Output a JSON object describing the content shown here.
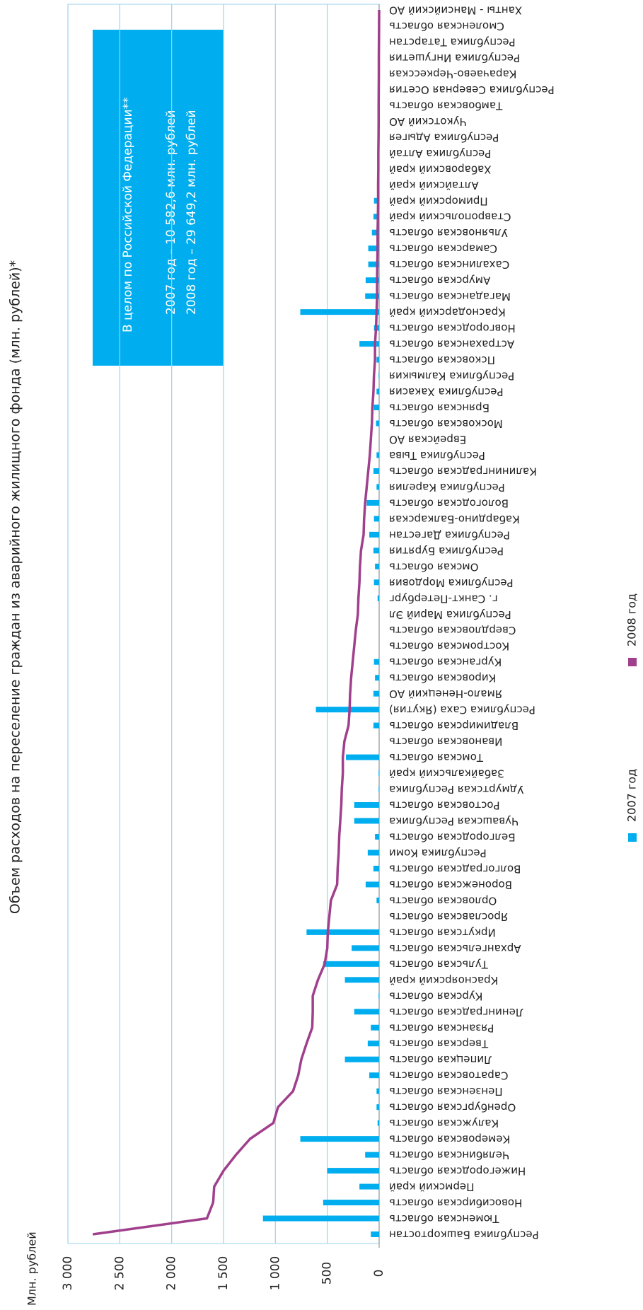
{
  "chart_data": {
    "type": "bar_line",
    "title": "Объем расходов на переселение граждан из аварийного жилищного фонда (млн. рублей)*",
    "ylabel": "Млн. рублей",
    "annotation": [
      "В  целом по Российской Федерации**",
      "2007 год – 10 582,6 млн. рублей",
      "2008 год – 29 649,2 млн. рублей"
    ],
    "categories": [
      "Республика Башкортостан",
      "Тюменская область",
      "Новосибирская область",
      "Пермский край",
      "Нижегородская область",
      "Челябинская область",
      "Кемеровская область",
      "Калужская область",
      "Оренбургская область",
      "Пензенская область",
      "Саратовская область",
      "Липецкая область",
      "Тверская область",
      "Рязанская  область",
      "Ленинградская область",
      "Курская область",
      "Красноярский край",
      "Тульская область",
      "Архангельская область",
      "Иркутская область",
      "Ярославская область",
      "Орловская область",
      "Воронежская область",
      "Волгоградская область",
      "Республика Коми",
      "Белгородская область",
      "Чувашская Республика",
      "Ростовская область",
      "Удмуртская Республика",
      "Забайкальский край",
      "Томская область",
      "Ивановская область",
      "Владимирская область",
      "Республика Саха (Якутия)",
      "Ямало-Ненецкий АО",
      "Кировская область",
      "Курганская область",
      "Костромская область",
      "Свердловская область",
      "Республика Марий Эл",
      "г. Санкт-Петербург",
      "Республика Мордовия",
      "Омская область",
      "Республика Бурятия",
      "Республика Дагестан",
      "Кабардино-Балкарская",
      "Вологодская область",
      "Республика Карелия",
      "Калининградская область",
      "Республика Тыва",
      "Еврейская АО",
      "Московская область",
      "Брянская область",
      "Республика Хакасия",
      "Республика Калмыкия",
      "Псковская область",
      "Астраханская область",
      "Новгородская область",
      "Краснодарский край",
      "Магаданская область",
      "Амурская область",
      "Сахалинская область",
      "Самарская область",
      "Ульяновская область",
      "Ставропольский край",
      "Приморский край",
      "Алтайский край",
      "Хабаровский край",
      "Республика Алтай",
      "Республика Адыгея",
      "Чукотский АО",
      "Тамбовская область",
      "Республика Северная Осетия",
      "Карачаево-Черкесская",
      "Республика Ингушетия",
      "Республика Татарстан",
      "Смоленская область",
      "Ханты - Мансийский АО"
    ],
    "series": [
      {
        "name": "2007 год",
        "kind": "bar",
        "color": "#00aeef",
        "values": [
          80,
          1120,
          540,
          190,
          500,
          135,
          760,
          15,
          25,
          25,
          95,
          330,
          110,
          80,
          240,
          5,
          330,
          540,
          265,
          700,
          0,
          25,
          130,
          55,
          110,
          40,
          240,
          240,
          5,
          5,
          320,
          0,
          55,
          610,
          55,
          40,
          50,
          0,
          0,
          0,
          15,
          50,
          40,
          55,
          95,
          50,
          120,
          25,
          55,
          25,
          0,
          30,
          50,
          25,
          5,
          25,
          190,
          50,
          760,
          135,
          130,
          105,
          105,
          70,
          55,
          50,
          0,
          5,
          0,
          0,
          0,
          0,
          0,
          0,
          0,
          0,
          0,
          0
        ]
      },
      {
        "name": "2008 год",
        "kind": "line",
        "color": "#a0408c",
        "values": [
          2760,
          1660,
          1600,
          1590,
          1500,
          1380,
          1245,
          1020,
          975,
          830,
          780,
          750,
          700,
          645,
          640,
          640,
          590,
          525,
          500,
          495,
          480,
          465,
          405,
          400,
          390,
          385,
          375,
          365,
          360,
          350,
          350,
          335,
          295,
          285,
          280,
          270,
          255,
          240,
          225,
          205,
          200,
          190,
          185,
          175,
          150,
          145,
          135,
          120,
          105,
          90,
          80,
          70,
          65,
          55,
          50,
          40,
          40,
          30,
          25,
          20,
          20,
          18,
          15,
          15,
          12,
          10,
          10,
          8,
          8,
          6,
          5,
          5,
          4,
          3,
          3,
          2,
          1,
          0
        ]
      }
    ],
    "ylim": [
      0,
      3000
    ],
    "yticks": [
      0,
      500,
      {
        "value": 1000,
        "label": "1 000"
      },
      {
        "value": 1500,
        "label": "1 500"
      },
      {
        "value": 2000,
        "label": "2 000"
      },
      {
        "value": 2500,
        "label": "2 500"
      },
      {
        "value": 3000,
        "label": "3 000"
      }
    ],
    "grid": true,
    "legend": "bottom"
  }
}
